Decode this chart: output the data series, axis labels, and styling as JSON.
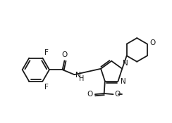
{
  "bg_color": "#ffffff",
  "line_color": "#1a1a1a",
  "line_width": 1.3,
  "font_size": 7.5,
  "xlim": [
    0,
    10
  ],
  "ylim": [
    0,
    7.5
  ]
}
